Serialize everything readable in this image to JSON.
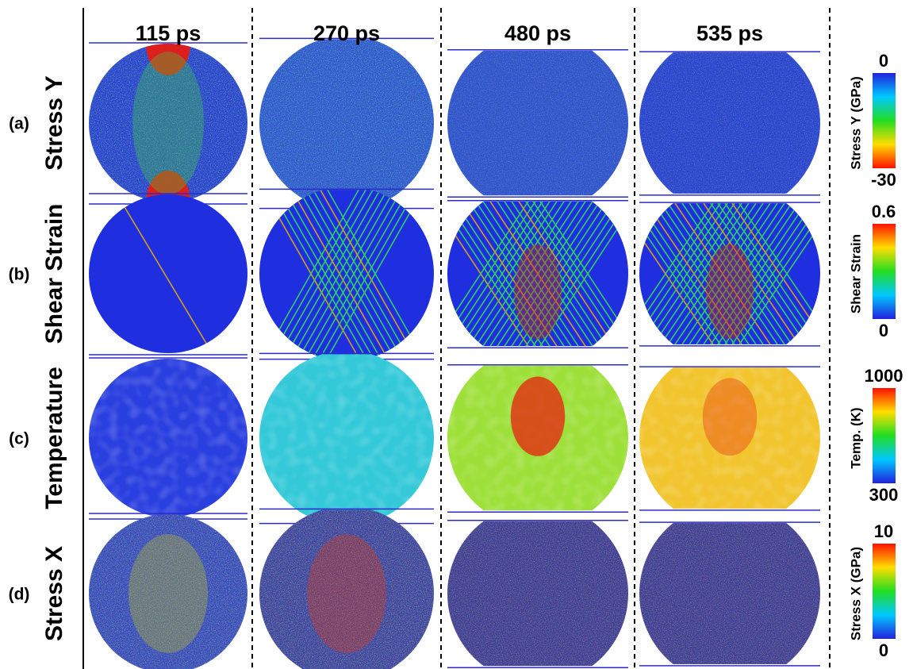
{
  "columns": [
    "115 ps",
    "270 ps",
    "480 ps",
    "535 ps"
  ],
  "rows": [
    {
      "tag": "(a)",
      "label": "Stress Y",
      "colorbar": {
        "label": "Stress Y (GPa)",
        "top": "0",
        "bottom": "-30"
      }
    },
    {
      "tag": "(b)",
      "label": "Shear Strain",
      "colorbar": {
        "label": "Shear Strain",
        "top": "0.6",
        "bottom": "0"
      }
    },
    {
      "tag": "(c)",
      "label": "Temperature",
      "colorbar": {
        "label": "Temp. (K)",
        "top": "1000",
        "bottom": "300"
      }
    },
    {
      "tag": "(d)",
      "label": "Stress X",
      "colorbar": {
        "label": "Stress X (GPa)",
        "top": "10",
        "bottom": "0"
      }
    }
  ]
}
